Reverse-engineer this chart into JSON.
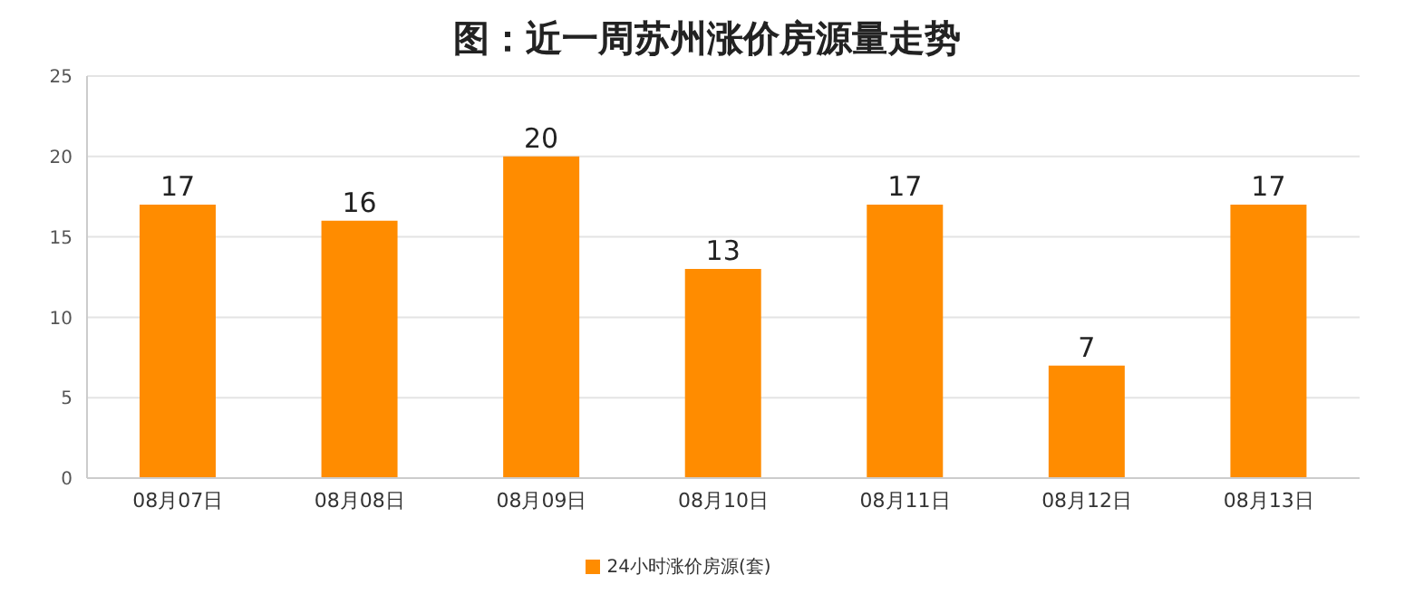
{
  "chart_data": {
    "type": "bar",
    "title": "图：近一周苏州涨价房源量走势",
    "categories": [
      "08月07日",
      "08月08日",
      "08月09日",
      "08月10日",
      "08月11日",
      "08月12日",
      "08月13日"
    ],
    "series": [
      {
        "name": "24小时涨价房源(套)",
        "color": "#ff8c00",
        "values": [
          17,
          16,
          20,
          13,
          17,
          7,
          17
        ]
      }
    ],
    "ylim": [
      0,
      25
    ],
    "yticks": [
      0,
      5,
      10,
      15,
      20,
      25
    ],
    "grid": "y",
    "legend": "bottom",
    "data_labels": true
  }
}
